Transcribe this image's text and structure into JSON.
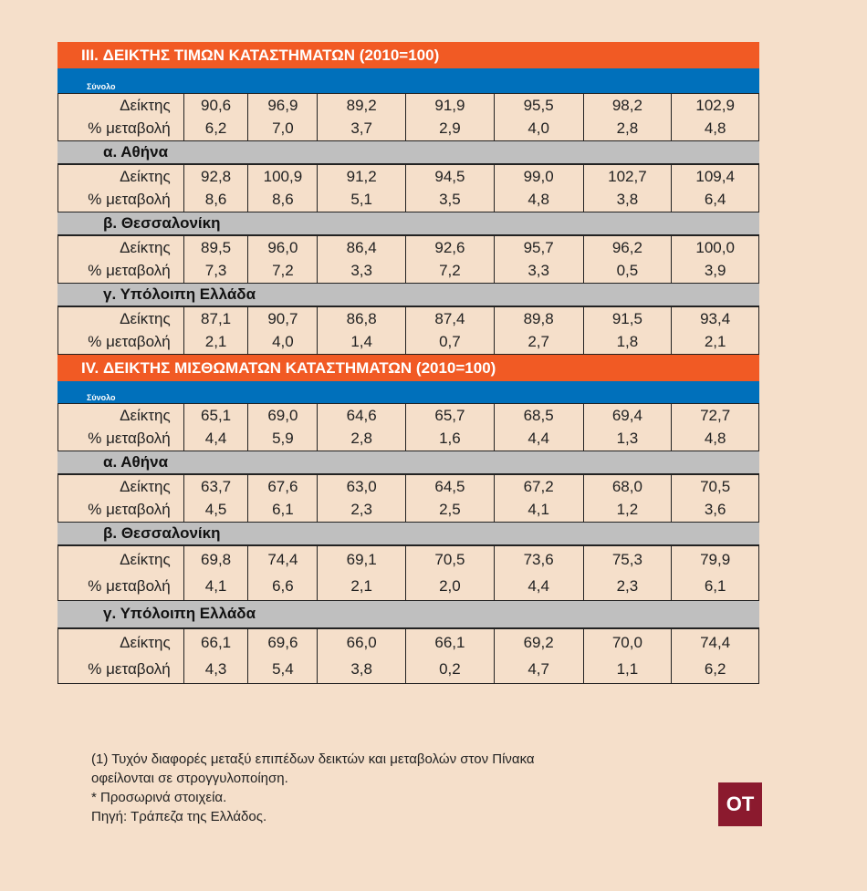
{
  "row_labels": {
    "index": "Δείκτης",
    "change": "% μεταβολή"
  },
  "sections": [
    {
      "title": "III. ΔΕΙΚΤΗΣ ΤΙΜΩΝ ΚΑΤΑΣΤΗΜΑΤΩΝ (2010=100)",
      "groups": [
        {
          "label": "Σύνολο",
          "index": [
            "90,6",
            "96,9",
            "89,2",
            "91,9",
            "95,5",
            "98,2",
            "102,9"
          ],
          "change": [
            "6,2",
            "7,0",
            "3,7",
            "2,9",
            "4,0",
            "2,8",
            "4,8"
          ]
        },
        {
          "label": "α.  Αθήνα",
          "index": [
            "92,8",
            "100,9",
            "91,2",
            "94,5",
            "99,0",
            "102,7",
            "109,4"
          ],
          "change": [
            "8,6",
            "8,6",
            "5,1",
            "3,5",
            "4,8",
            "3,8",
            "6,4"
          ]
        },
        {
          "label": "β.  Θεσσαλονίκη",
          "index": [
            "89,5",
            "96,0",
            "86,4",
            "92,6",
            "95,7",
            "96,2",
            "100,0"
          ],
          "change": [
            "7,3",
            "7,2",
            "3,3",
            "7,2",
            "3,3",
            "0,5",
            "3,9"
          ]
        },
        {
          "label": "γ. Υπόλοιπη Ελλάδα",
          "index": [
            "87,1",
            "90,7",
            "86,8",
            "87,4",
            "89,8",
            "91,5",
            "93,4"
          ],
          "change": [
            "2,1",
            "4,0",
            "1,4",
            "0,7",
            "2,7",
            "1,8",
            "2,1"
          ]
        }
      ]
    },
    {
      "title": "IV. ΔΕΙΚΤΗΣ ΜΙΣΘΩΜΑΤΩΝ ΚΑΤΑΣΤΗΜΑΤΩΝ (2010=100)",
      "groups": [
        {
          "label": "Σύνολο",
          "index": [
            "65,1",
            "69,0",
            "64,6",
            "65,7",
            "68,5",
            "69,4",
            "72,7"
          ],
          "change": [
            "4,4",
            "5,9",
            "2,8",
            "1,6",
            "4,4",
            "1,3",
            "4,8"
          ]
        },
        {
          "label": "α.  Αθήνα",
          "index": [
            "63,7",
            "67,6",
            "63,0",
            "64,5",
            "67,2",
            "68,0",
            "70,5"
          ],
          "change": [
            "4,5",
            "6,1",
            "2,3",
            "2,5",
            "4,1",
            "1,2",
            "3,6"
          ]
        },
        {
          "label": "β.  Θεσσαλονίκη",
          "index": [
            "69,8",
            "74,4",
            "69,1",
            "70,5",
            "73,6",
            "75,3",
            "79,9"
          ],
          "change": [
            "4,1",
            "6,6",
            "2,1",
            "2,0",
            "4,4",
            "2,3",
            "6,1"
          ]
        },
        {
          "label": "γ. Υπόλοιπη Ελλάδα",
          "index": [
            "66,1",
            "69,6",
            "66,0",
            "66,1",
            "69,2",
            "70,0",
            "74,4"
          ],
          "change": [
            "4,3",
            "5,4",
            "3,8",
            "0,2",
            "4,7",
            "1,1",
            "6,2"
          ]
        }
      ]
    }
  ],
  "footnotes": [
    "(1) Τυχόν διαφορές μεταξύ επιπέδων δεικτών και μεταβολών στον Πίνακα",
    "οφείλονται σε στρογγυλοποίηση.",
    "* Προσωρινά στοιχεία.",
    "Πηγή: Τράπεζα της Ελλάδος."
  ],
  "logo": "OT"
}
